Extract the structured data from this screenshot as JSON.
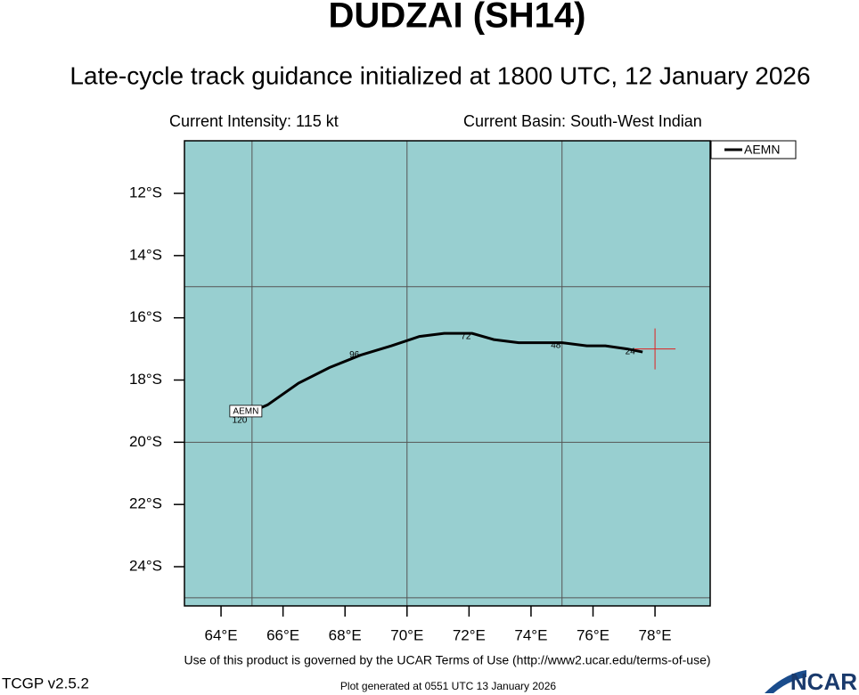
{
  "chart_data": {
    "type": "line",
    "title": "DUDZAI (SH14)",
    "subtitle": "Late-cycle track guidance initialized at 1800 UTC, 12 January 2026",
    "info_left": "Current Intensity: 115 kt",
    "info_right": "Current Basin: South-West Indian",
    "xlim": [
      62.82,
      79.78
    ],
    "ylim": [
      -25.26,
      -10.31
    ],
    "xticks": [
      {
        "value": 64,
        "label": "64°E"
      },
      {
        "value": 66,
        "label": "66°E"
      },
      {
        "value": 68,
        "label": "68°E"
      },
      {
        "value": 70,
        "label": "70°E"
      },
      {
        "value": 72,
        "label": "72°E"
      },
      {
        "value": 74,
        "label": "74°E"
      },
      {
        "value": 76,
        "label": "76°E"
      },
      {
        "value": 78,
        "label": "78°E"
      }
    ],
    "yticks": [
      {
        "value": -12,
        "label": "12°S"
      },
      {
        "value": -14,
        "label": "14°S"
      },
      {
        "value": -16,
        "label": "16°S"
      },
      {
        "value": -18,
        "label": "18°S"
      },
      {
        "value": -20,
        "label": "20°S"
      },
      {
        "value": -22,
        "label": "22°S"
      },
      {
        "value": -24,
        "label": "24°S"
      }
    ],
    "grid_x": [
      65,
      70,
      75
    ],
    "grid_y": [
      -15,
      -20,
      -25
    ],
    "background": "#98cfd0",
    "series": [
      {
        "name": "AEMN",
        "color": "#000000",
        "x": [
          77.6,
          77.1,
          76.4,
          75.8,
          75.0,
          73.6,
          72.8,
          72.1,
          71.2,
          70.4,
          69.5,
          68.5,
          67.5,
          66.5,
          65.5,
          64.8
        ],
        "values": [
          -17.1,
          -17.0,
          -16.9,
          -16.9,
          -16.8,
          -16.8,
          -16.7,
          -16.5,
          -16.5,
          -16.6,
          -16.9,
          -17.2,
          -17.6,
          -18.1,
          -18.8,
          -19.1
        ]
      }
    ],
    "annotations": [
      {
        "text": "24",
        "x": 77.2,
        "y": -17.1
      },
      {
        "text": "48",
        "x": 74.8,
        "y": -16.9
      },
      {
        "text": "72",
        "x": 71.9,
        "y": -16.6
      },
      {
        "text": "96",
        "x": 68.3,
        "y": -17.2
      },
      {
        "text": "120",
        "x": 64.6,
        "y": -19.3
      }
    ],
    "current_position": {
      "x": 78.0,
      "y": -17.0,
      "color": "#e02020"
    },
    "legend": "upper right",
    "footer": "Use of this product is governed by the UCAR Terms of Use (http://www2.ucar.edu/terms-of-use)",
    "version": "TCGP v2.5.2",
    "generated": "Plot generated at 0551 UTC   13 January 2026",
    "logo": "NCAR"
  }
}
